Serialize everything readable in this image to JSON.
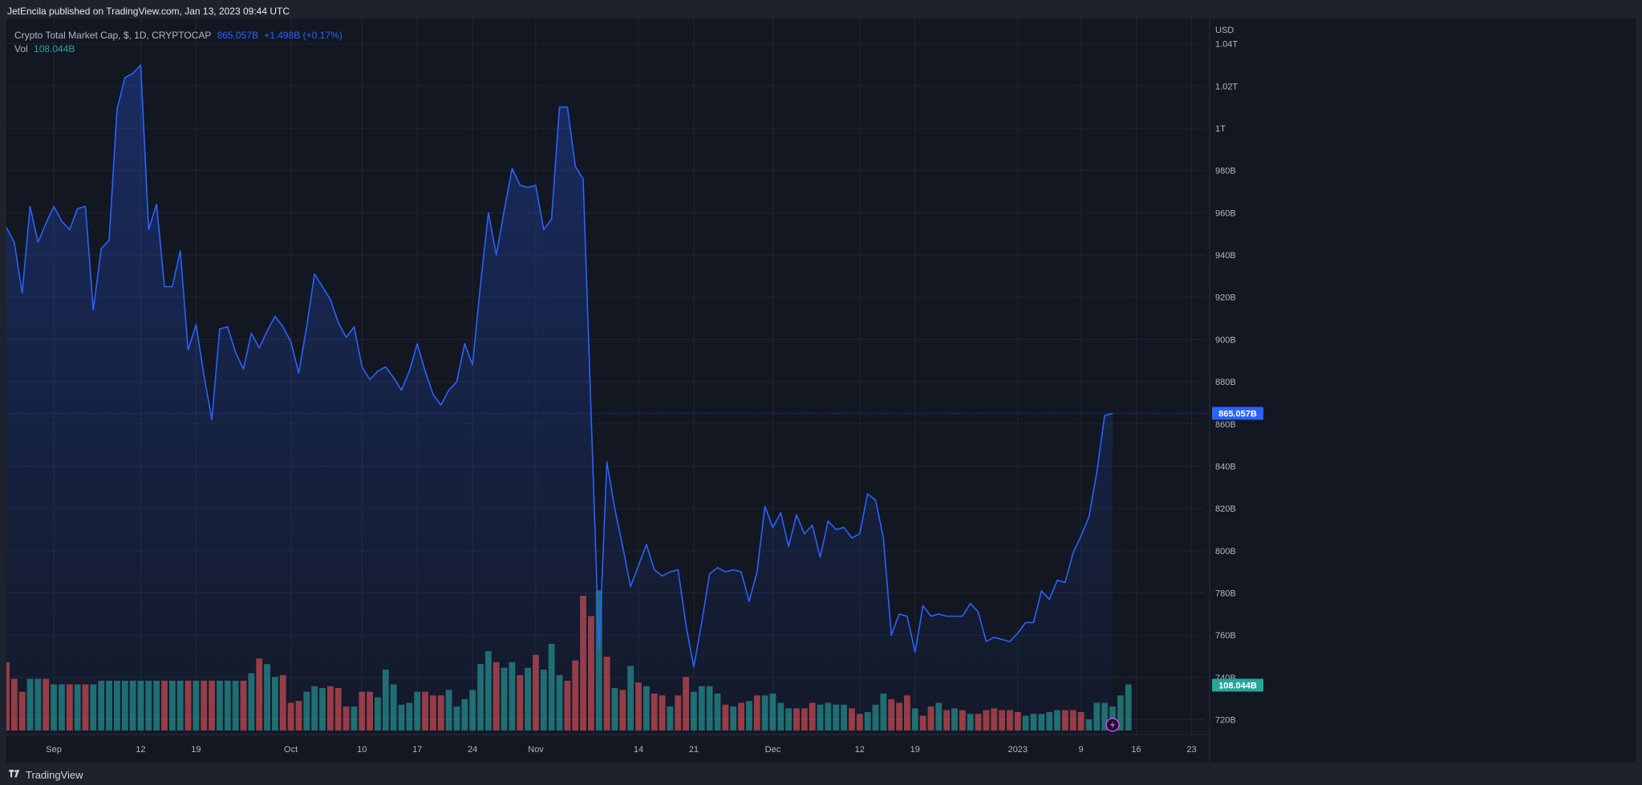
{
  "header": {
    "published_by": "JetEncila published on TradingView.com, Jan 13, 2023 09:44 UTC"
  },
  "legend": {
    "symbol": "Crypto Total Market Cap, $, 1D, CRYPTOCAP",
    "price": "865.057B",
    "change": "+1.498B (+0.17%)",
    "volume_label": "Vol",
    "volume_value": "108.044B"
  },
  "footer": {
    "brand": "TradingView"
  },
  "colors": {
    "background": "#131722",
    "line": "#2962ff",
    "volume_up": "#26a69a",
    "volume_down": "#ef5350",
    "grid": "#1f2532"
  },
  "chart_data": {
    "type": "area",
    "title": "Crypto Total Market Cap, $, 1D, CRYPTOCAP",
    "currency_label": "USD",
    "ylim": [
      713,
      1052
    ],
    "y_ticks": [
      {
        "value": 720,
        "label": "720B"
      },
      {
        "value": 740,
        "label": "740B"
      },
      {
        "value": 760,
        "label": "760B"
      },
      {
        "value": 780,
        "label": "780B"
      },
      {
        "value": 800,
        "label": "800B"
      },
      {
        "value": 820,
        "label": "820B"
      },
      {
        "value": 840,
        "label": "840B"
      },
      {
        "value": 860,
        "label": "860B"
      },
      {
        "value": 880,
        "label": "880B"
      },
      {
        "value": 900,
        "label": "900B"
      },
      {
        "value": 920,
        "label": "920B"
      },
      {
        "value": 940,
        "label": "940B"
      },
      {
        "value": 960,
        "label": "960B"
      },
      {
        "value": 980,
        "label": "980B"
      },
      {
        "value": 1000,
        "label": "1T"
      },
      {
        "value": 1020,
        "label": "1.02T"
      },
      {
        "value": 1040,
        "label": "1.04T"
      }
    ],
    "x_ticks": [
      {
        "index": 6,
        "label": "Sep"
      },
      {
        "index": 17,
        "label": "12"
      },
      {
        "index": 24,
        "label": "19"
      },
      {
        "index": 36,
        "label": "Oct"
      },
      {
        "index": 45,
        "label": "10"
      },
      {
        "index": 52,
        "label": "17"
      },
      {
        "index": 59,
        "label": "24"
      },
      {
        "index": 67,
        "label": "Nov"
      },
      {
        "index": 80,
        "label": "14"
      },
      {
        "index": 87,
        "label": "21"
      },
      {
        "index": 97,
        "label": "Dec"
      },
      {
        "index": 108,
        "label": "12"
      },
      {
        "index": 115,
        "label": "19"
      },
      {
        "index": 128,
        "label": "2023"
      },
      {
        "index": 136,
        "label": "9"
      },
      {
        "index": 143,
        "label": "16"
      },
      {
        "index": 150,
        "label": "23"
      }
    ],
    "last_value": 865.057,
    "last_value_label": "865.057B",
    "volume_last_label": "108.044B",
    "series": [
      {
        "values": [
          953,
          946,
          922,
          963,
          946,
          955,
          963,
          956,
          952,
          962,
          963,
          914,
          943,
          947,
          1009,
          1024,
          1026,
          1030,
          952,
          964,
          925,
          925,
          942,
          895,
          907,
          883,
          862,
          905,
          906,
          894,
          886,
          903,
          896,
          904,
          911,
          906,
          899,
          884,
          906,
          931,
          925,
          919,
          908,
          901,
          906,
          887,
          881,
          885,
          887,
          882,
          876,
          885,
          898,
          885,
          874,
          869,
          876,
          880,
          898,
          888,
          926,
          960,
          940,
          961,
          981,
          973,
          972,
          973,
          952,
          957,
          1010,
          1010,
          982,
          976,
          865,
          753,
          842,
          820,
          802,
          783,
          793,
          803,
          791,
          788,
          790,
          791,
          765,
          745,
          766,
          789,
          792,
          790,
          791,
          790,
          776,
          790,
          821,
          811,
          818,
          802,
          817,
          808,
          812,
          797,
          814,
          810,
          811,
          806,
          808,
          827,
          824,
          806,
          760,
          770,
          769,
          752,
          774,
          769,
          770,
          769,
          769,
          769,
          775,
          771,
          757,
          759,
          758,
          757,
          761,
          766,
          766,
          781,
          777,
          786,
          785,
          799,
          807,
          816,
          837,
          864,
          865
        ]
      },
      {
        "name": "Vol",
        "values": [
          [
            37,
            false
          ],
          [
            28,
            false
          ],
          [
            21,
            false
          ],
          [
            28,
            true
          ],
          [
            28,
            true
          ],
          [
            28,
            false
          ],
          [
            25,
            true
          ],
          [
            25,
            true
          ],
          [
            25,
            false
          ],
          [
            25,
            true
          ],
          [
            25,
            false
          ],
          [
            25,
            true
          ],
          [
            27,
            true
          ],
          [
            27,
            true
          ],
          [
            27,
            true
          ],
          [
            27,
            true
          ],
          [
            27,
            true
          ],
          [
            27,
            true
          ],
          [
            27,
            true
          ],
          [
            27,
            true
          ],
          [
            27,
            false
          ],
          [
            27,
            true
          ],
          [
            27,
            true
          ],
          [
            27,
            false
          ],
          [
            27,
            true
          ],
          [
            27,
            false
          ],
          [
            27,
            false
          ],
          [
            27,
            true
          ],
          [
            27,
            true
          ],
          [
            27,
            true
          ],
          [
            27,
            false
          ],
          [
            31,
            true
          ],
          [
            39,
            false
          ],
          [
            36,
            true
          ],
          [
            29,
            true
          ],
          [
            30,
            false
          ],
          [
            15,
            false
          ],
          [
            16,
            false
          ],
          [
            21,
            true
          ],
          [
            24,
            true
          ],
          [
            23,
            true
          ],
          [
            24,
            false
          ],
          [
            23,
            false
          ],
          [
            13,
            false
          ],
          [
            13,
            true
          ],
          [
            21,
            false
          ],
          [
            21,
            false
          ],
          [
            18,
            true
          ],
          [
            33,
            true
          ],
          [
            25,
            true
          ],
          [
            14,
            true
          ],
          [
            15,
            true
          ],
          [
            21,
            true
          ],
          [
            21,
            false
          ],
          [
            19,
            false
          ],
          [
            19,
            false
          ],
          [
            22,
            true
          ],
          [
            13,
            true
          ],
          [
            17,
            true
          ],
          [
            22,
            true
          ],
          [
            36,
            true
          ],
          [
            43,
            true
          ],
          [
            37,
            false
          ],
          [
            34,
            true
          ],
          [
            37,
            true
          ],
          [
            30,
            false
          ],
          [
            34,
            true
          ],
          [
            41,
            false
          ],
          [
            33,
            true
          ],
          [
            47,
            true
          ],
          [
            30,
            true
          ],
          [
            27,
            false
          ],
          [
            38,
            false
          ],
          [
            73,
            false
          ],
          [
            62,
            false
          ],
          [
            76,
            true
          ],
          [
            40,
            false
          ],
          [
            23,
            true
          ],
          [
            22,
            false
          ],
          [
            35,
            true
          ],
          [
            26,
            false
          ],
          [
            24,
            true
          ],
          [
            20,
            false
          ],
          [
            19,
            false
          ],
          [
            13,
            true
          ],
          [
            19,
            false
          ],
          [
            29,
            false
          ],
          [
            21,
            true
          ],
          [
            24,
            true
          ],
          [
            24,
            true
          ],
          [
            20,
            true
          ],
          [
            14,
            false
          ],
          [
            13,
            true
          ],
          [
            15,
            false
          ],
          [
            16,
            true
          ],
          [
            19,
            false
          ],
          [
            19,
            true
          ],
          [
            20,
            true
          ],
          [
            15,
            true
          ],
          [
            12,
            true
          ],
          [
            12,
            false
          ],
          [
            12,
            false
          ],
          [
            15,
            false
          ],
          [
            14,
            true
          ],
          [
            15,
            true
          ],
          [
            14,
            true
          ],
          [
            14,
            true
          ],
          [
            12,
            false
          ],
          [
            9,
            false
          ],
          [
            10,
            true
          ],
          [
            14,
            true
          ],
          [
            20,
            true
          ],
          [
            17,
            false
          ],
          [
            15,
            false
          ],
          [
            19,
            false
          ],
          [
            12,
            true
          ],
          [
            8,
            false
          ],
          [
            13,
            false
          ],
          [
            15,
            true
          ],
          [
            11,
            false
          ],
          [
            12,
            true
          ],
          [
            11,
            false
          ],
          [
            9,
            true
          ],
          [
            9,
            false
          ],
          [
            11,
            false
          ],
          [
            12,
            false
          ],
          [
            11,
            false
          ],
          [
            11,
            false
          ],
          [
            10,
            false
          ],
          [
            8,
            true
          ],
          [
            9,
            true
          ],
          [
            9,
            true
          ],
          [
            10,
            true
          ],
          [
            11,
            true
          ],
          [
            11,
            false
          ],
          [
            11,
            false
          ],
          [
            10,
            false
          ],
          [
            6,
            true
          ],
          [
            15,
            true
          ],
          [
            15,
            true
          ],
          [
            13,
            true
          ],
          [
            19,
            true
          ],
          [
            25,
            true
          ]
        ]
      }
    ]
  }
}
